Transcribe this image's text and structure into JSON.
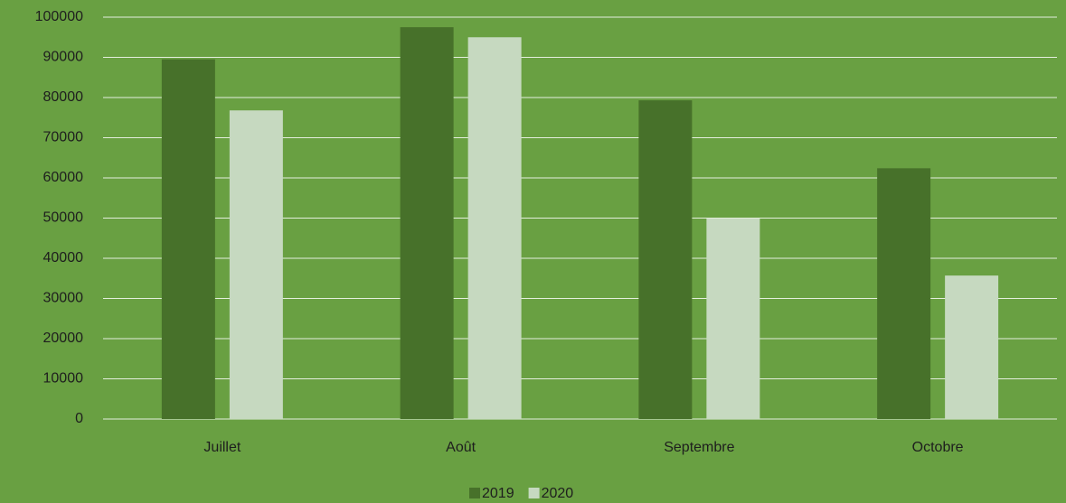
{
  "chart_data": {
    "type": "bar",
    "categories": [
      "Juillet",
      "Août",
      "Septembre",
      "Octobre"
    ],
    "series": [
      {
        "name": "2019",
        "color": "#47712a",
        "values": [
          89500,
          97500,
          79300,
          62400
        ]
      },
      {
        "name": "2020",
        "color": "#c6d9c0",
        "values": [
          76800,
          95000,
          49900,
          35700
        ]
      }
    ],
    "ylim": [
      0,
      100000
    ],
    "yticks": [
      0,
      10000,
      20000,
      30000,
      40000,
      50000,
      60000,
      70000,
      80000,
      90000,
      100000
    ],
    "grid": true,
    "legend": "bottom",
    "background": "#69a042"
  }
}
